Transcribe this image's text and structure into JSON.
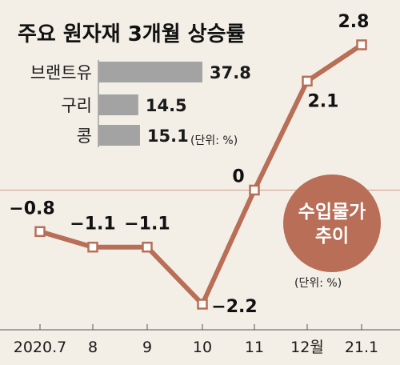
{
  "chart_data": [
    {
      "type": "bar",
      "orientation": "horizontal",
      "title": "주요 원자재 3개월 상승률",
      "categories": [
        "브랜트유",
        "구리",
        "콩"
      ],
      "values": [
        37.8,
        14.5,
        15.1
      ],
      "value_labels": [
        "37.8",
        "14.5",
        "15.1"
      ],
      "unit_note": "(단위: %)",
      "bar_color": "#a3a3a3"
    },
    {
      "type": "line",
      "title": "수입물가 추이",
      "categories": [
        "2020.7",
        "8",
        "9",
        "10",
        "11",
        "12월",
        "21.1"
      ],
      "values": [
        -0.8,
        -1.1,
        -1.1,
        -2.2,
        0,
        2.1,
        2.8
      ],
      "value_labels": [
        "−0.8",
        "−1.1",
        "−1.1",
        "−2.2",
        "0",
        "2.1",
        "2.8"
      ],
      "ylim": [
        -2.2,
        2.8
      ],
      "reference_line": 0,
      "unit_note": "(단위: %)",
      "line_color": "#b86e57",
      "badge_color": "#b86e57"
    }
  ]
}
